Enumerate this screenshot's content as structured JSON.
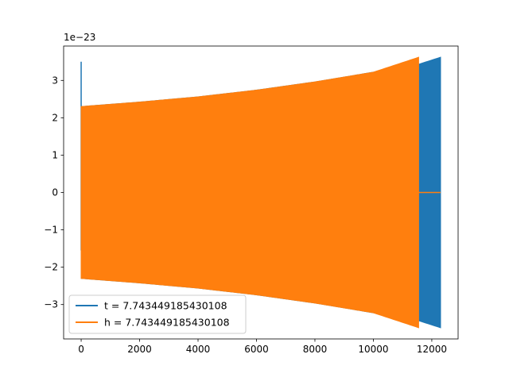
{
  "chart_data": {
    "type": "line",
    "title": "",
    "xlabel": "",
    "ylabel": "",
    "xlim": [
      -600,
      12900
    ],
    "ylim": [
      -3.92,
      3.92
    ],
    "y_offset_text": "1e−23",
    "x_ticks": [
      0,
      2000,
      4000,
      6000,
      8000,
      10000,
      12000
    ],
    "x_tick_labels": [
      "0",
      "2000",
      "4000",
      "6000",
      "8000",
      "10000",
      "12000"
    ],
    "y_ticks": [
      -3,
      -2,
      -1,
      0,
      1,
      2,
      3
    ],
    "y_tick_labels": [
      "−3",
      "−2",
      "−1",
      "0",
      "1",
      "2",
      "3"
    ],
    "grid": false,
    "legend_position": "lower-left",
    "series": [
      {
        "name": "t = 7.743449185430108",
        "color": "#1f77b4",
        "envelope_x": [
          0,
          2000,
          4000,
          6000,
          8000,
          10000,
          11500,
          12300
        ],
        "envelope_amplitude": [
          2.3,
          2.42,
          2.56,
          2.74,
          2.96,
          3.22,
          3.42,
          3.62
        ],
        "start_spike": {
          "x": 0,
          "max": 3.5,
          "min": -1.55
        }
      },
      {
        "name": "h = 7.743449185430108",
        "color": "#ff7f0e",
        "envelope_x": [
          0,
          2000,
          4000,
          6000,
          8000,
          10000,
          11550
        ],
        "envelope_amplitude": [
          2.3,
          2.42,
          2.56,
          2.74,
          2.96,
          3.22,
          3.62
        ],
        "flat_after": {
          "x_start": 11550,
          "x_end": 12300,
          "value": 0
        }
      }
    ]
  }
}
